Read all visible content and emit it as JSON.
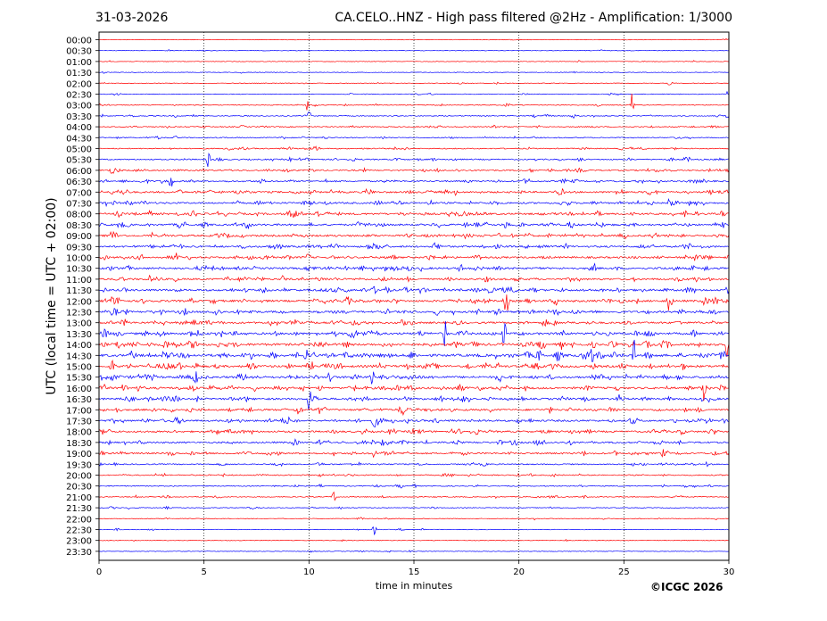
{
  "header": {
    "date": "31-03-2026",
    "title": "CA.CELO..HNZ - High pass filtered @2Hz - Amplification: 1/3000"
  },
  "footer": {
    "copyright": "©ICGC 2026"
  },
  "colors": {
    "red": "#ff0000",
    "blue": "#0000ff",
    "grid": "#000000"
  },
  "chart_data": {
    "type": "line",
    "title": "CA.CELO..HNZ - High pass filtered @2Hz - Amplification: 1/3000",
    "xlabel": "time in minutes",
    "ylabel": "UTC (local time = UTC + 02:00)",
    "xlim": [
      0,
      30
    ],
    "xticks": [
      0,
      5,
      10,
      15,
      20,
      25,
      30
    ],
    "grid": "vertical dotted at 5-minute intervals",
    "rows": [
      "00:00",
      "00:30",
      "01:00",
      "01:30",
      "02:00",
      "02:30",
      "03:00",
      "03:30",
      "04:00",
      "04:30",
      "05:00",
      "05:30",
      "06:00",
      "06:30",
      "07:00",
      "07:30",
      "08:00",
      "08:30",
      "09:00",
      "09:30",
      "10:00",
      "10:30",
      "11:00",
      "11:30",
      "12:00",
      "12:30",
      "13:00",
      "13:30",
      "14:00",
      "14:30",
      "15:00",
      "15:30",
      "16:00",
      "16:30",
      "17:00",
      "17:30",
      "18:00",
      "18:30",
      "19:00",
      "19:30",
      "20:00",
      "20:30",
      "21:00",
      "21:30",
      "22:00",
      "22:30",
      "23:00",
      "23:30"
    ],
    "row_colors": [
      "red",
      "blue"
    ],
    "activity": [
      0.03,
      0.04,
      0.05,
      0.06,
      0.08,
      0.1,
      0.18,
      0.2,
      0.22,
      0.24,
      0.26,
      0.34,
      0.38,
      0.44,
      0.55,
      0.55,
      0.62,
      0.6,
      0.6,
      0.58,
      0.58,
      0.6,
      0.6,
      0.65,
      0.68,
      0.62,
      0.62,
      0.72,
      0.78,
      0.85,
      0.72,
      0.72,
      0.68,
      0.62,
      0.6,
      0.6,
      0.58,
      0.52,
      0.48,
      0.32,
      0.28,
      0.22,
      0.18,
      0.12,
      0.1,
      0.08,
      0.06,
      0.05
    ],
    "events": [
      {
        "row": "02:00",
        "t": 27.2,
        "amp": 0.5
      },
      {
        "row": "02:30",
        "t": 29.9,
        "amp": 0.7
      },
      {
        "row": "03:00",
        "t": 25.4,
        "amp": 1.8
      },
      {
        "row": "03:00",
        "t": 9.9,
        "amp": 0.6
      },
      {
        "row": "03:30",
        "t": 10.0,
        "amp": 0.7
      },
      {
        "row": "05:30",
        "t": 5.2,
        "amp": 1.0
      },
      {
        "row": "06:30",
        "t": 3.4,
        "amp": 0.8
      },
      {
        "row": "12:00",
        "t": 19.4,
        "amp": 1.8
      },
      {
        "row": "12:00",
        "t": 27.2,
        "amp": 1.7
      },
      {
        "row": "13:30",
        "t": 16.5,
        "amp": 2.2
      },
      {
        "row": "13:30",
        "t": 19.3,
        "amp": 1.8
      },
      {
        "row": "14:00",
        "t": 29.9,
        "amp": 2.0
      },
      {
        "row": "14:30",
        "t": 23.5,
        "amp": 1.8
      },
      {
        "row": "14:30",
        "t": 25.5,
        "amp": 1.7
      },
      {
        "row": "15:30",
        "t": 4.6,
        "amp": 1.5
      },
      {
        "row": "15:30",
        "t": 13.0,
        "amp": 1.4
      },
      {
        "row": "15:30",
        "t": 11.0,
        "amp": 1.3
      },
      {
        "row": "16:00",
        "t": 28.8,
        "amp": 1.4
      },
      {
        "row": "16:30",
        "t": 10.0,
        "amp": 1.6
      },
      {
        "row": "19:00",
        "t": 13.1,
        "amp": 1.0
      },
      {
        "row": "21:00",
        "t": 11.2,
        "amp": 0.9
      },
      {
        "row": "22:30",
        "t": 13.1,
        "amp": 0.6
      }
    ]
  }
}
